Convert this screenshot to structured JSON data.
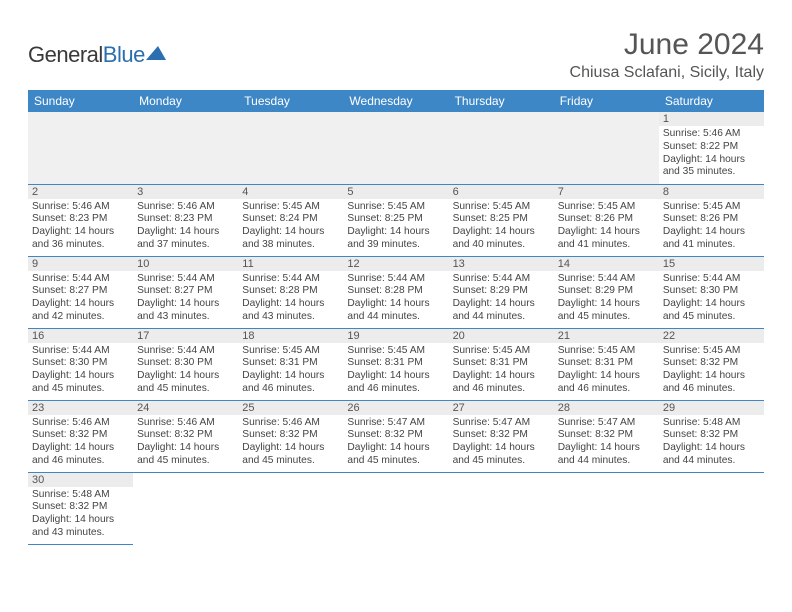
{
  "brand": {
    "name_a": "General",
    "name_b": "Blue"
  },
  "title": "June 2024",
  "location": "Chiusa Sclafani, Sicily, Italy",
  "colors": {
    "header_bg": "#3e87c6",
    "band_bg": "#ececec"
  },
  "weekdays": [
    "Sunday",
    "Monday",
    "Tuesday",
    "Wednesday",
    "Thursday",
    "Friday",
    "Saturday"
  ],
  "first_weekday_index": 6,
  "days_in_month": 30,
  "days": {
    "1": {
      "sunrise": "5:46 AM",
      "sunset": "8:22 PM",
      "daylight": "14 hours and 35 minutes."
    },
    "2": {
      "sunrise": "5:46 AM",
      "sunset": "8:23 PM",
      "daylight": "14 hours and 36 minutes."
    },
    "3": {
      "sunrise": "5:46 AM",
      "sunset": "8:23 PM",
      "daylight": "14 hours and 37 minutes."
    },
    "4": {
      "sunrise": "5:45 AM",
      "sunset": "8:24 PM",
      "daylight": "14 hours and 38 minutes."
    },
    "5": {
      "sunrise": "5:45 AM",
      "sunset": "8:25 PM",
      "daylight": "14 hours and 39 minutes."
    },
    "6": {
      "sunrise": "5:45 AM",
      "sunset": "8:25 PM",
      "daylight": "14 hours and 40 minutes."
    },
    "7": {
      "sunrise": "5:45 AM",
      "sunset": "8:26 PM",
      "daylight": "14 hours and 41 minutes."
    },
    "8": {
      "sunrise": "5:45 AM",
      "sunset": "8:26 PM",
      "daylight": "14 hours and 41 minutes."
    },
    "9": {
      "sunrise": "5:44 AM",
      "sunset": "8:27 PM",
      "daylight": "14 hours and 42 minutes."
    },
    "10": {
      "sunrise": "5:44 AM",
      "sunset": "8:27 PM",
      "daylight": "14 hours and 43 minutes."
    },
    "11": {
      "sunrise": "5:44 AM",
      "sunset": "8:28 PM",
      "daylight": "14 hours and 43 minutes."
    },
    "12": {
      "sunrise": "5:44 AM",
      "sunset": "8:28 PM",
      "daylight": "14 hours and 44 minutes."
    },
    "13": {
      "sunrise": "5:44 AM",
      "sunset": "8:29 PM",
      "daylight": "14 hours and 44 minutes."
    },
    "14": {
      "sunrise": "5:44 AM",
      "sunset": "8:29 PM",
      "daylight": "14 hours and 45 minutes."
    },
    "15": {
      "sunrise": "5:44 AM",
      "sunset": "8:30 PM",
      "daylight": "14 hours and 45 minutes."
    },
    "16": {
      "sunrise": "5:44 AM",
      "sunset": "8:30 PM",
      "daylight": "14 hours and 45 minutes."
    },
    "17": {
      "sunrise": "5:44 AM",
      "sunset": "8:30 PM",
      "daylight": "14 hours and 45 minutes."
    },
    "18": {
      "sunrise": "5:45 AM",
      "sunset": "8:31 PM",
      "daylight": "14 hours and 46 minutes."
    },
    "19": {
      "sunrise": "5:45 AM",
      "sunset": "8:31 PM",
      "daylight": "14 hours and 46 minutes."
    },
    "20": {
      "sunrise": "5:45 AM",
      "sunset": "8:31 PM",
      "daylight": "14 hours and 46 minutes."
    },
    "21": {
      "sunrise": "5:45 AM",
      "sunset": "8:31 PM",
      "daylight": "14 hours and 46 minutes."
    },
    "22": {
      "sunrise": "5:45 AM",
      "sunset": "8:32 PM",
      "daylight": "14 hours and 46 minutes."
    },
    "23": {
      "sunrise": "5:46 AM",
      "sunset": "8:32 PM",
      "daylight": "14 hours and 46 minutes."
    },
    "24": {
      "sunrise": "5:46 AM",
      "sunset": "8:32 PM",
      "daylight": "14 hours and 45 minutes."
    },
    "25": {
      "sunrise": "5:46 AM",
      "sunset": "8:32 PM",
      "daylight": "14 hours and 45 minutes."
    },
    "26": {
      "sunrise": "5:47 AM",
      "sunset": "8:32 PM",
      "daylight": "14 hours and 45 minutes."
    },
    "27": {
      "sunrise": "5:47 AM",
      "sunset": "8:32 PM",
      "daylight": "14 hours and 45 minutes."
    },
    "28": {
      "sunrise": "5:47 AM",
      "sunset": "8:32 PM",
      "daylight": "14 hours and 44 minutes."
    },
    "29": {
      "sunrise": "5:48 AM",
      "sunset": "8:32 PM",
      "daylight": "14 hours and 44 minutes."
    },
    "30": {
      "sunrise": "5:48 AM",
      "sunset": "8:32 PM",
      "daylight": "14 hours and 43 minutes."
    }
  },
  "labels": {
    "sunrise_prefix": "Sunrise: ",
    "sunset_prefix": "Sunset: ",
    "daylight_prefix": "Daylight: "
  }
}
